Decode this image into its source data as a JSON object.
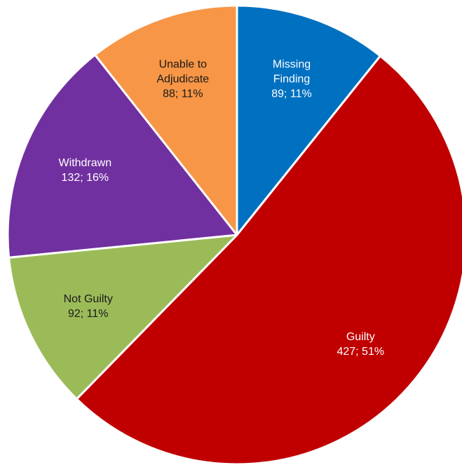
{
  "chart_data": {
    "type": "pie",
    "categories": [
      "Missing Finding",
      "Guilty",
      "Not Guilty",
      "Withdrawn",
      "Unable to Adjudicate"
    ],
    "values": [
      89,
      427,
      92,
      132,
      88
    ],
    "value_labels": [
      "89; 11%",
      "427; 51%",
      "92; 11%",
      "132; 16%",
      "88; 11%"
    ],
    "colors": [
      "#0070c0",
      "#c00000",
      "#9bbb59",
      "#7030a0",
      "#f79646"
    ],
    "label_colors": [
      "#ffffff",
      "#ffffff",
      "#1a1a1a",
      "#ffffff",
      "#1a1a1a"
    ]
  }
}
